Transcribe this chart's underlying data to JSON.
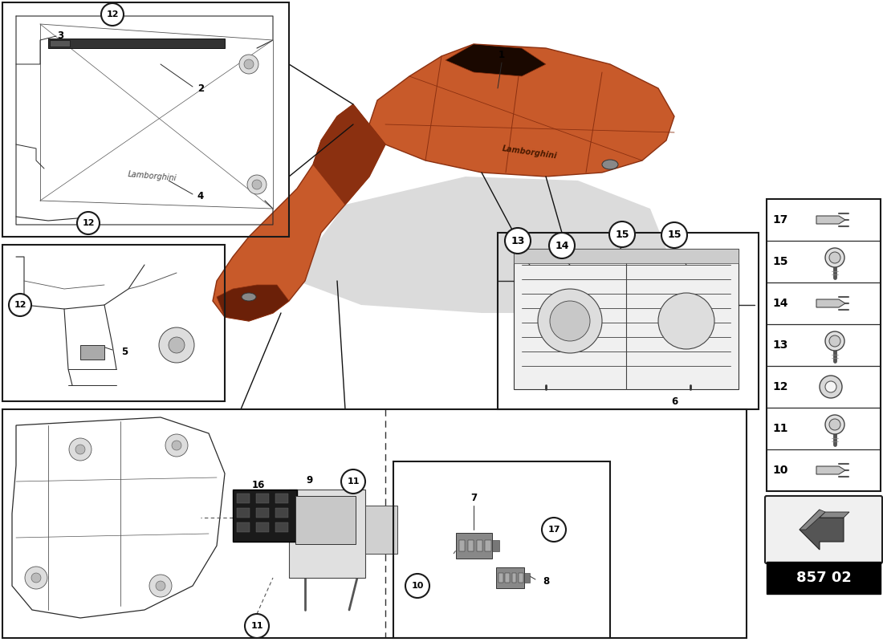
{
  "bg_color": "#ffffff",
  "orange_main": "#c85a2a",
  "orange_dark": "#8b3010",
  "orange_shadow": "#6b2008",
  "gray_shadow": "#aaaaaa",
  "line_color": "#2a2a2a",
  "detail_color": "#555555",
  "sidebar_items": [
    17,
    15,
    14,
    13,
    12,
    11,
    10
  ],
  "part_code": "857 02",
  "circle_fill": "#ffffff",
  "circle_edge": "#1a1a1a",
  "box_edge": "#1a1a1a"
}
